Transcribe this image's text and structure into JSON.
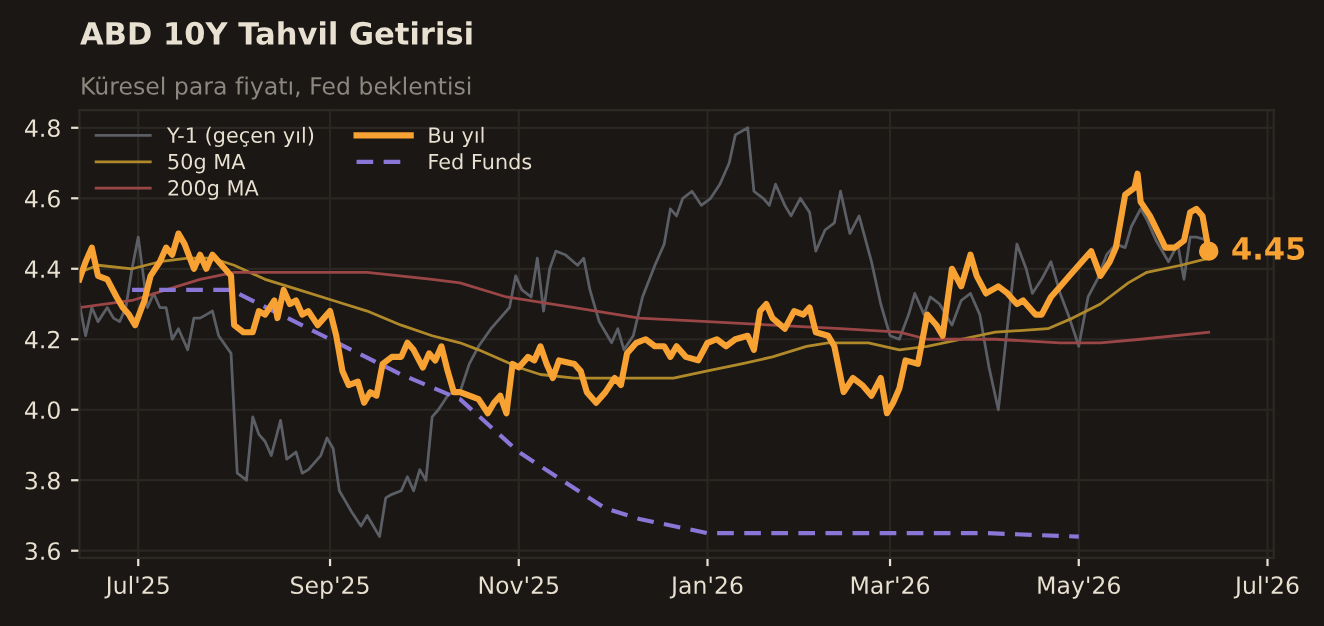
{
  "chart_data": {
    "type": "line",
    "title": "ABD 10Y Tahvil Getirisi",
    "subtitle": "Küresel para fiyatı, Fed beklentisi",
    "xlim": [
      "2025-06-12",
      "2026-07-03"
    ],
    "ylim": [
      3.58,
      4.85
    ],
    "xticks": [
      {
        "value": "2025-07-01",
        "label": "Jul'25"
      },
      {
        "value": "2025-09-01",
        "label": "Sep'25"
      },
      {
        "value": "2025-11-01",
        "label": "Nov'25"
      },
      {
        "value": "2026-01-01",
        "label": "Jan'26"
      },
      {
        "value": "2026-03-01",
        "label": "Mar'26"
      },
      {
        "value": "2026-05-01",
        "label": "May'26"
      },
      {
        "value": "2026-07-01",
        "label": "Jul'26"
      }
    ],
    "yticks": [
      3.6,
      3.8,
      {
        "value": 4.0,
        "label": "4.0"
      },
      4.2,
      4.4,
      4.6,
      4.8
    ],
    "grid": true,
    "legend": "top left",
    "marker": "none",
    "annotations": [
      {
        "text": "4.45",
        "x": "2026-06-12",
        "y": 4.45
      }
    ],
    "series": [
      {
        "name": "Y-1 (geçen yıl)",
        "color": "#5b5e64",
        "x": [
          "2025-06-12",
          "2025-06-14",
          "2025-06-16",
          "2025-06-18",
          "2025-06-21",
          "2025-06-23",
          "2025-06-25",
          "2025-06-27",
          "2025-06-29",
          "2025-07-01",
          "2025-07-04",
          "2025-07-06",
          "2025-07-08",
          "2025-07-10",
          "2025-07-12",
          "2025-07-14",
          "2025-07-17",
          "2025-07-19",
          "2025-07-21",
          "2025-07-23",
          "2025-07-25",
          "2025-07-27",
          "2025-07-31",
          "2025-08-02",
          "2025-08-05",
          "2025-08-07",
          "2025-08-09",
          "2025-08-11",
          "2025-08-13",
          "2025-08-16",
          "2025-08-18",
          "2025-08-21",
          "2025-08-23",
          "2025-08-25",
          "2025-08-29",
          "2025-08-31",
          "2025-09-02",
          "2025-09-04",
          "2025-09-06",
          "2025-09-08",
          "2025-09-11",
          "2025-09-13",
          "2025-09-15",
          "2025-09-17",
          "2025-09-19",
          "2025-09-21",
          "2025-09-24",
          "2025-09-26",
          "2025-09-28",
          "2025-09-30",
          "2025-10-02",
          "2025-10-04",
          "2025-10-06",
          "2025-10-09",
          "2025-10-11",
          "2025-10-13",
          "2025-10-16",
          "2025-10-19",
          "2025-10-23",
          "2025-10-26",
          "2025-10-29",
          "2025-10-31",
          "2025-11-02",
          "2025-11-05",
          "2025-11-07",
          "2025-11-09",
          "2025-11-11",
          "2025-11-13",
          "2025-11-16",
          "2025-11-20",
          "2025-11-22",
          "2025-11-24",
          "2025-11-27",
          "2025-12-01",
          "2025-12-03",
          "2025-12-05",
          "2025-12-08",
          "2025-12-11",
          "2025-12-15",
          "2025-12-18",
          "2025-12-20",
          "2025-12-22",
          "2025-12-24",
          "2025-12-27",
          "2025-12-30",
          "2026-01-02",
          "2026-01-05",
          "2026-01-08",
          "2026-01-10",
          "2026-01-14",
          "2026-01-16",
          "2026-01-19",
          "2026-01-21",
          "2026-01-23",
          "2026-01-26",
          "2026-01-28",
          "2026-01-31",
          "2026-02-03",
          "2026-02-05",
          "2026-02-08",
          "2026-02-11",
          "2026-02-13",
          "2026-02-16",
          "2026-02-19",
          "2026-02-23",
          "2026-02-26",
          "2026-03-01",
          "2026-03-04",
          "2026-03-07",
          "2026-03-09",
          "2026-03-12",
          "2026-03-14",
          "2026-03-17",
          "2026-03-21",
          "2026-03-24",
          "2026-03-27",
          "2026-03-30",
          "2026-04-02",
          "2026-04-05",
          "2026-04-08",
          "2026-04-11",
          "2026-04-14",
          "2026-04-16",
          "2026-04-19",
          "2026-04-22",
          "2026-04-25",
          "2026-04-28",
          "2026-05-01",
          "2026-05-04",
          "2026-05-07",
          "2026-05-10",
          "2026-05-13",
          "2026-05-16",
          "2026-05-18",
          "2026-05-21",
          "2026-05-23",
          "2026-05-26",
          "2026-05-30",
          "2026-06-02",
          "2026-06-04",
          "2026-06-06",
          "2026-06-08",
          "2026-06-12"
        ],
        "values": [
          4.3,
          4.21,
          4.29,
          4.25,
          4.29,
          4.26,
          4.25,
          4.29,
          4.4,
          4.49,
          4.29,
          4.33,
          4.29,
          4.29,
          4.2,
          4.23,
          4.17,
          4.26,
          4.26,
          4.27,
          4.28,
          4.21,
          4.16,
          3.82,
          3.8,
          3.98,
          3.93,
          3.91,
          3.87,
          3.97,
          3.86,
          3.88,
          3.82,
          3.83,
          3.87,
          3.92,
          3.89,
          3.77,
          3.74,
          3.71,
          3.67,
          3.7,
          3.67,
          3.64,
          3.75,
          3.76,
          3.77,
          3.81,
          3.77,
          3.83,
          3.8,
          3.98,
          4.0,
          4.04,
          4.05,
          4.05,
          4.13,
          4.18,
          4.23,
          4.26,
          4.29,
          4.38,
          4.34,
          4.32,
          4.43,
          4.28,
          4.4,
          4.45,
          4.44,
          4.41,
          4.43,
          4.34,
          4.25,
          4.19,
          4.23,
          4.17,
          4.21,
          4.32,
          4.41,
          4.47,
          4.57,
          4.55,
          4.6,
          4.62,
          4.58,
          4.6,
          4.64,
          4.7,
          4.78,
          4.8,
          4.62,
          4.6,
          4.58,
          4.64,
          4.58,
          4.55,
          4.6,
          4.56,
          4.45,
          4.51,
          4.53,
          4.62,
          4.5,
          4.55,
          4.42,
          4.3,
          4.21,
          4.2,
          4.27,
          4.33,
          4.27,
          4.32,
          4.3,
          4.24,
          4.31,
          4.33,
          4.27,
          4.12,
          4.0,
          4.24,
          4.47,
          4.4,
          4.33,
          4.37,
          4.42,
          4.33,
          4.26,
          4.18,
          4.32,
          4.37,
          4.44,
          4.47,
          4.46,
          4.52,
          4.57,
          4.54,
          4.48,
          4.42,
          4.47,
          4.37,
          4.49,
          4.49,
          4.48
        ],
        "line_style": "solid"
      },
      {
        "name": "50g MA",
        "color": "#b08a2a",
        "x": [
          "2025-06-12",
          "2025-06-18",
          "2025-06-29",
          "2025-07-08",
          "2025-07-17",
          "2025-07-25",
          "2025-08-01",
          "2025-08-11",
          "2025-08-22",
          "2025-09-02",
          "2025-09-13",
          "2025-09-24",
          "2025-10-04",
          "2025-10-13",
          "2025-10-19",
          "2025-11-01",
          "2025-11-08",
          "2025-11-19",
          "2025-12-10",
          "2025-12-21",
          "2026-01-01",
          "2026-01-12",
          "2026-01-22",
          "2026-02-02",
          "2026-02-09",
          "2026-02-22",
          "2026-03-04",
          "2026-03-13",
          "2026-03-24",
          "2026-04-04",
          "2026-04-21",
          "2026-04-29",
          "2026-05-08",
          "2026-05-17",
          "2026-05-23",
          "2026-06-03",
          "2026-06-12"
        ],
        "values": [
          4.39,
          4.41,
          4.4,
          4.42,
          4.43,
          4.43,
          4.41,
          4.37,
          4.34,
          4.31,
          4.28,
          4.24,
          4.21,
          4.19,
          4.17,
          4.12,
          4.1,
          4.09,
          4.09,
          4.09,
          4.11,
          4.13,
          4.15,
          4.18,
          4.19,
          4.19,
          4.17,
          4.18,
          4.2,
          4.22,
          4.23,
          4.26,
          4.3,
          4.36,
          4.39,
          4.41,
          4.43
        ],
        "line_style": "solid"
      },
      {
        "name": "200g MA",
        "color": "#9a4646",
        "x": [
          "2025-06-12",
          "2025-06-29",
          "2025-07-10",
          "2025-07-21",
          "2025-08-01",
          "2025-08-22",
          "2025-09-13",
          "2025-10-04",
          "2025-10-13",
          "2025-10-28",
          "2025-11-19",
          "2025-12-10",
          "2026-01-01",
          "2026-01-22",
          "2026-02-13",
          "2026-03-04",
          "2026-03-13",
          "2026-04-04",
          "2026-04-25",
          "2026-05-08",
          "2026-05-21",
          "2026-06-12"
        ],
        "values": [
          4.29,
          4.31,
          4.34,
          4.37,
          4.39,
          4.39,
          4.39,
          4.37,
          4.36,
          4.32,
          4.29,
          4.26,
          4.25,
          4.24,
          4.23,
          4.22,
          4.2,
          4.2,
          4.19,
          4.19,
          4.2,
          4.22
        ],
        "line_style": "solid"
      },
      {
        "name": "Bu yıl",
        "color": "#f7a233",
        "x": [
          "2025-06-12",
          "2025-06-14",
          "2025-06-16",
          "2025-06-18",
          "2025-06-21",
          "2025-06-24",
          "2025-06-26",
          "2025-06-28",
          "2025-06-30",
          "2025-07-03",
          "2025-07-05",
          "2025-07-08",
          "2025-07-10",
          "2025-07-12",
          "2025-07-14",
          "2025-07-16",
          "2025-07-19",
          "2025-07-21",
          "2025-07-23",
          "2025-07-25",
          "2025-07-28",
          "2025-07-31",
          "2025-08-01",
          "2025-08-04",
          "2025-08-07",
          "2025-08-09",
          "2025-08-11",
          "2025-08-14",
          "2025-08-15",
          "2025-08-17",
          "2025-08-19",
          "2025-08-21",
          "2025-08-23",
          "2025-08-25",
          "2025-08-28",
          "2025-08-30",
          "2025-09-01",
          "2025-09-03",
          "2025-09-05",
          "2025-09-07",
          "2025-09-10",
          "2025-09-12",
          "2025-09-14",
          "2025-09-16",
          "2025-09-18",
          "2025-09-21",
          "2025-09-24",
          "2025-09-26",
          "2025-09-28",
          "2025-10-01",
          "2025-10-03",
          "2025-10-05",
          "2025-10-07",
          "2025-10-09",
          "2025-10-11",
          "2025-10-13",
          "2025-10-16",
          "2025-10-19",
          "2025-10-22",
          "2025-10-24",
          "2025-10-26",
          "2025-10-28",
          "2025-10-30",
          "2025-11-01",
          "2025-11-04",
          "2025-11-06",
          "2025-11-08",
          "2025-11-10",
          "2025-11-12",
          "2025-11-14",
          "2025-11-19",
          "2025-11-21",
          "2025-11-23",
          "2025-11-26",
          "2025-11-29",
          "2025-12-02",
          "2025-12-04",
          "2025-12-06",
          "2025-12-09",
          "2025-12-12",
          "2025-12-15",
          "2025-12-18",
          "2025-12-20",
          "2025-12-22",
          "2025-12-25",
          "2025-12-29",
          "2026-01-01",
          "2026-01-04",
          "2026-01-07",
          "2026-01-10",
          "2026-01-14",
          "2026-01-16",
          "2026-01-18",
          "2026-01-20",
          "2026-01-22",
          "2026-01-26",
          "2026-01-29",
          "2026-02-01",
          "2026-02-03",
          "2026-02-05",
          "2026-02-09",
          "2026-02-11",
          "2026-02-14",
          "2026-02-17",
          "2026-02-20",
          "2026-02-23",
          "2026-02-26",
          "2026-02-28",
          "2026-03-02",
          "2026-03-04",
          "2026-03-06",
          "2026-03-10",
          "2026-03-13",
          "2026-03-16",
          "2026-03-18",
          "2026-03-21",
          "2026-03-24",
          "2026-03-27",
          "2026-03-29",
          "2026-04-01",
          "2026-04-05",
          "2026-04-08",
          "2026-04-11",
          "2026-04-13",
          "2026-04-17",
          "2026-04-19",
          "2026-04-22",
          "2026-04-25",
          "2026-04-28",
          "2026-05-02",
          "2026-05-05",
          "2026-05-08",
          "2026-05-11",
          "2026-05-13",
          "2026-05-16",
          "2026-05-19",
          "2026-05-20",
          "2026-05-21",
          "2026-05-24",
          "2026-05-29",
          "2026-06-01",
          "2026-06-04",
          "2026-06-06",
          "2026-06-08",
          "2026-06-10",
          "2026-06-12"
        ],
        "values": [
          4.37,
          4.42,
          4.46,
          4.38,
          4.37,
          4.32,
          4.29,
          4.27,
          4.24,
          4.31,
          4.38,
          4.42,
          4.46,
          4.44,
          4.5,
          4.47,
          4.4,
          4.44,
          4.4,
          4.44,
          4.41,
          4.38,
          4.24,
          4.22,
          4.22,
          4.28,
          4.27,
          4.31,
          4.26,
          4.34,
          4.3,
          4.31,
          4.27,
          4.28,
          4.24,
          4.26,
          4.28,
          4.21,
          4.11,
          4.07,
          4.08,
          4.02,
          4.05,
          4.04,
          4.13,
          4.15,
          4.15,
          4.19,
          4.17,
          4.12,
          4.16,
          4.14,
          4.18,
          4.11,
          4.05,
          4.05,
          4.04,
          4.03,
          3.99,
          4.02,
          4.04,
          3.99,
          4.13,
          4.12,
          4.15,
          4.14,
          4.18,
          4.13,
          4.09,
          4.14,
          4.13,
          4.11,
          4.05,
          4.02,
          4.05,
          4.09,
          4.07,
          4.16,
          4.19,
          4.2,
          4.18,
          4.18,
          4.15,
          4.18,
          4.15,
          4.14,
          4.19,
          4.2,
          4.18,
          4.2,
          4.21,
          4.17,
          4.28,
          4.3,
          4.26,
          4.23,
          4.28,
          4.27,
          4.29,
          4.22,
          4.21,
          4.18,
          4.05,
          4.09,
          4.07,
          4.04,
          4.09,
          3.99,
          4.02,
          4.06,
          4.14,
          4.13,
          4.27,
          4.24,
          4.21,
          4.4,
          4.35,
          4.44,
          4.38,
          4.33,
          4.35,
          4.33,
          4.3,
          4.31,
          4.27,
          4.27,
          4.32,
          4.35,
          4.38,
          4.42,
          4.45,
          4.38,
          4.42,
          4.46,
          4.61,
          4.63,
          4.67,
          4.59,
          4.55,
          4.46,
          4.46,
          4.48,
          4.56,
          4.57,
          4.55,
          4.45
        ],
        "line_style": "solid"
      },
      {
        "name": "Fed Funds",
        "color": "#8a76d6",
        "x": [
          "2025-06-29",
          "2025-07-31",
          "2025-09-01",
          "2025-09-24",
          "2025-10-13",
          "2025-11-01",
          "2025-11-29",
          "2025-12-10",
          "2026-01-01",
          "2026-04-01",
          "2026-05-01"
        ],
        "values": [
          4.34,
          4.34,
          4.2,
          4.1,
          4.03,
          3.88,
          3.72,
          3.69,
          3.65,
          3.65,
          3.64
        ],
        "line_style": "dashed"
      }
    ]
  }
}
